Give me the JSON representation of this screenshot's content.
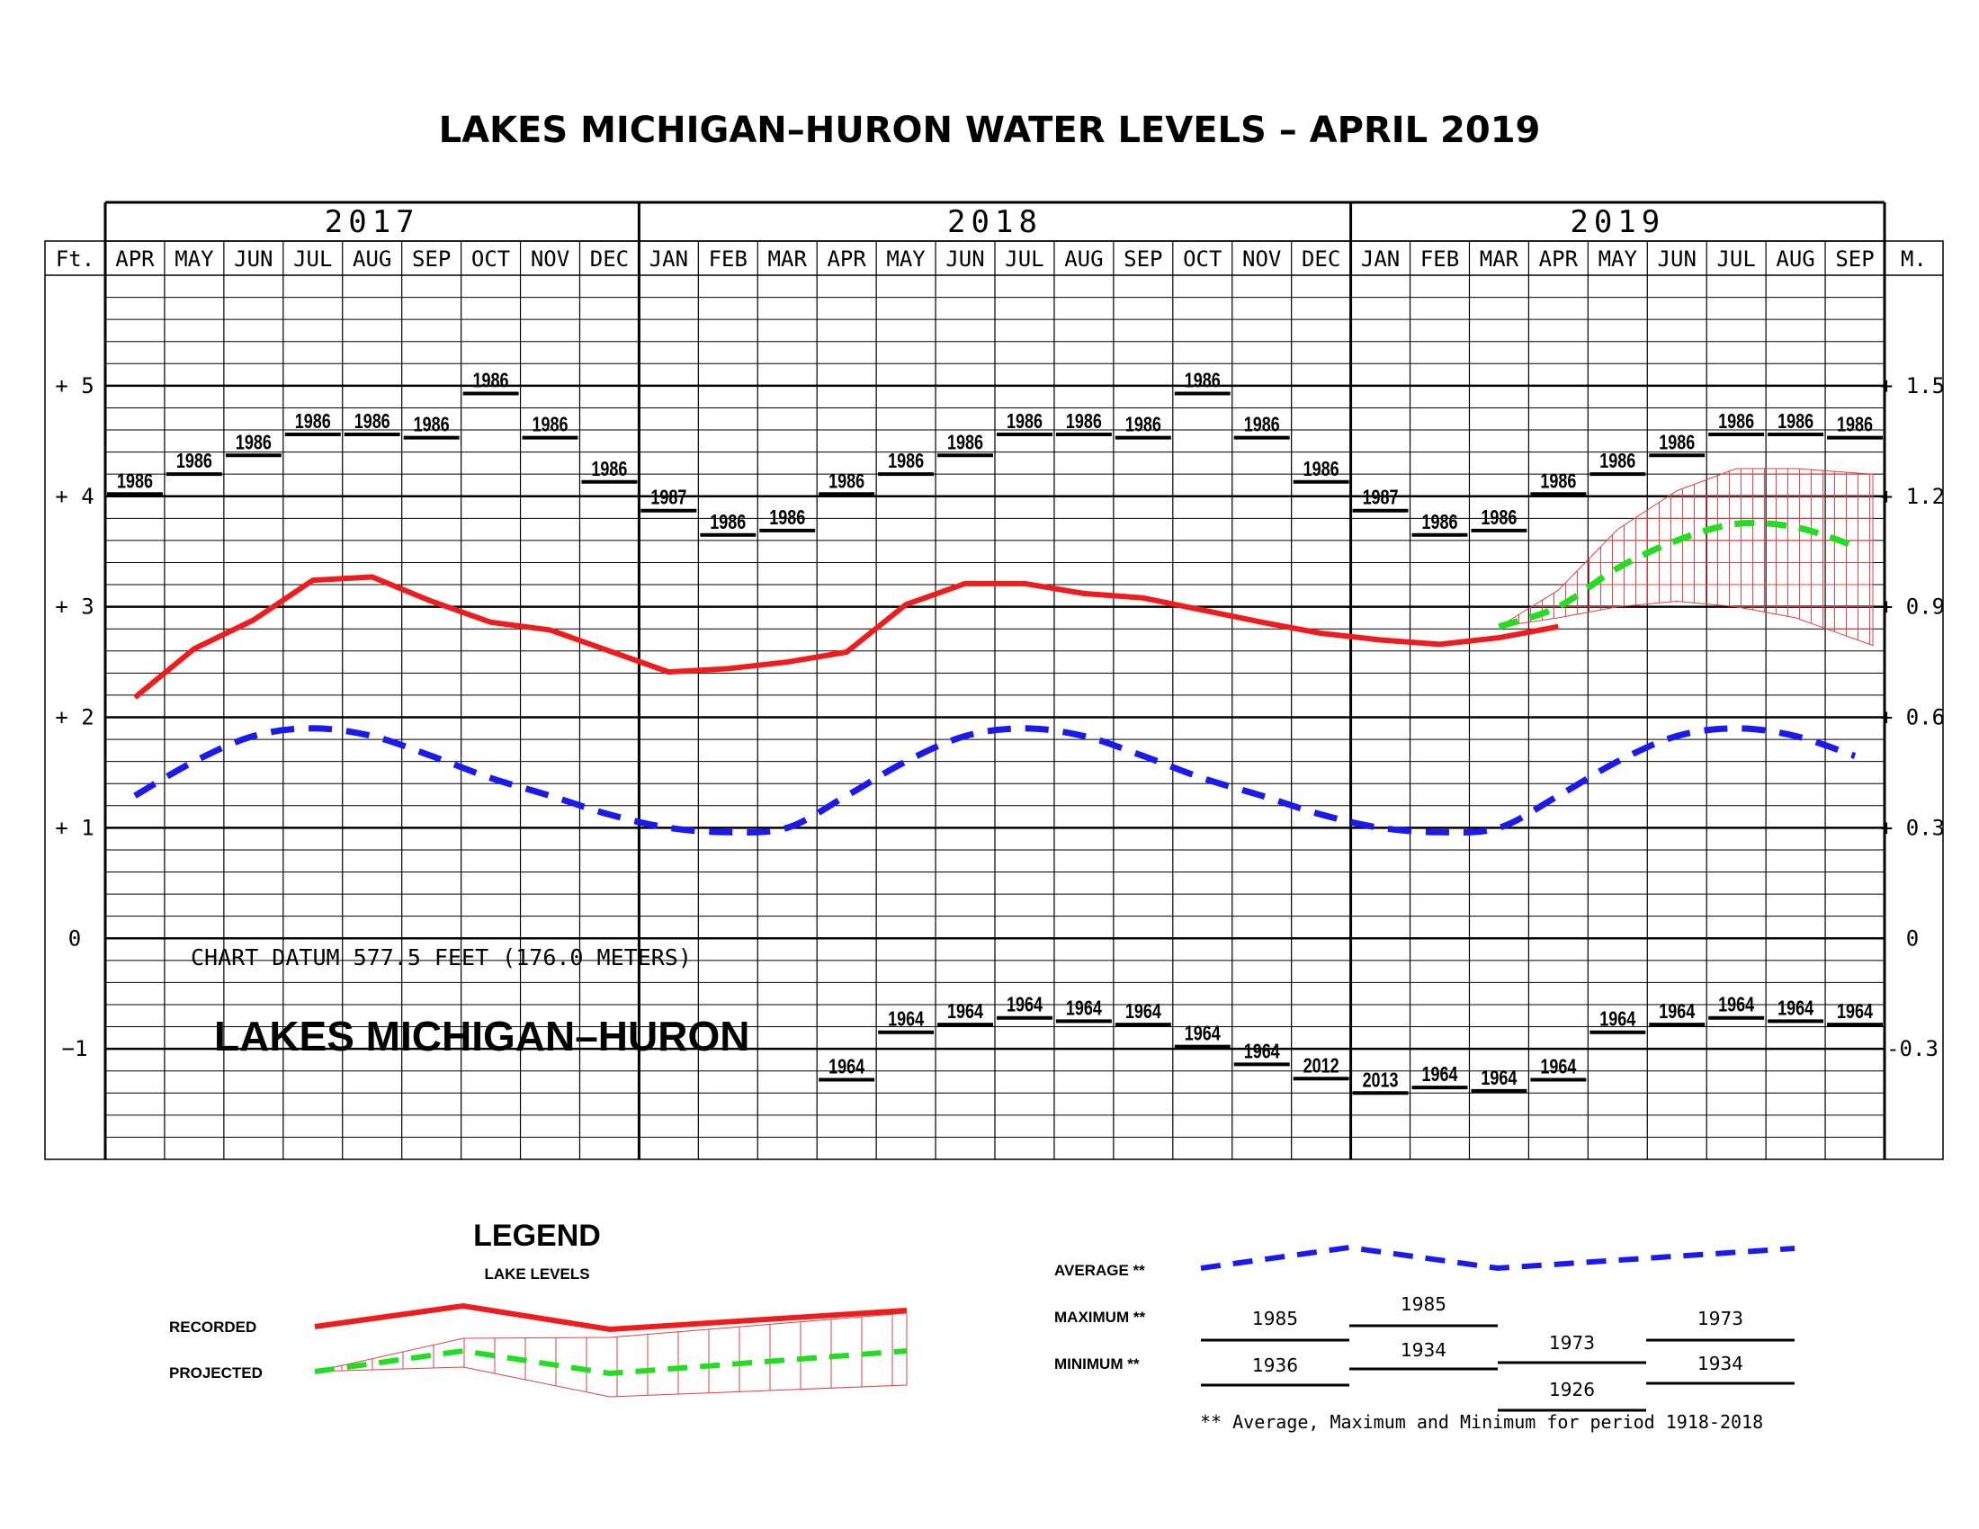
{
  "title": "LAKES  MICHIGAN–HURON  WATER  LEVELS  –  APRIL  2019",
  "datum_text": "CHART DATUM   577.5 FEET (176.0 METERS)",
  "lake_label": "LAKES MICHIGAN–HURON",
  "years": [
    {
      "label": "2017",
      "start": 0,
      "end": 9
    },
    {
      "label": "2018",
      "start": 9,
      "end": 21
    },
    {
      "label": "2019",
      "start": 21,
      "end": 30
    }
  ],
  "months": [
    "APR",
    "MAY",
    "JUN",
    "JUL",
    "AUG",
    "SEP",
    "OCT",
    "NOV",
    "DEC",
    "JAN",
    "FEB",
    "MAR",
    "APR",
    "MAY",
    "JUN",
    "JUL",
    "AUG",
    "SEP",
    "OCT",
    "NOV",
    "DEC",
    "JAN",
    "FEB",
    "MAR",
    "APR",
    "MAY",
    "JUN",
    "JUL",
    "AUG",
    "SEP"
  ],
  "left_unit": "Ft.",
  "right_unit": "M.",
  "left_ticks": [
    {
      "value": 5,
      "label": "+ 5"
    },
    {
      "value": 4,
      "label": "+ 4"
    },
    {
      "value": 3,
      "label": "+ 3"
    },
    {
      "value": 2,
      "label": "+ 2"
    },
    {
      "value": 1,
      "label": "+ 1"
    },
    {
      "value": 0,
      "label": "0"
    },
    {
      "value": -1,
      "label": "−1"
    }
  ],
  "right_ticks": [
    {
      "value": 5,
      "label": "+ 1.5"
    },
    {
      "value": 4,
      "label": "+ 1.2"
    },
    {
      "value": 3,
      "label": "+ 0.9"
    },
    {
      "value": 2,
      "label": "+ 0.6"
    },
    {
      "value": 1,
      "label": "+ 0.3"
    },
    {
      "value": 0,
      "label": "0"
    },
    {
      "value": -1,
      "label": "-0.3"
    }
  ],
  "colors": {
    "recorded": "#ee1c1c",
    "average": "#1a1aee",
    "projected": "#22dd22",
    "hatch": "#e04040",
    "grid": "#000000"
  },
  "chart_data": {
    "type": "line",
    "title": "LAKES  MICHIGAN–HURON  WATER  LEVELS  –  APRIL  2019",
    "categories": [
      "APR",
      "MAY",
      "JUN",
      "JUL",
      "AUG",
      "SEP",
      "OCT",
      "NOV",
      "DEC",
      "JAN",
      "FEB",
      "MAR",
      "APR",
      "MAY",
      "JUN",
      "JUL",
      "AUG",
      "SEP",
      "OCT",
      "NOV",
      "DEC",
      "JAN",
      "FEB",
      "MAR",
      "APR",
      "MAY",
      "JUN",
      "JUL",
      "AUG",
      "SEP"
    ],
    "ylim": [
      -2,
      6
    ],
    "y_units_left": "Ft.",
    "y_units_right": "M.",
    "grid": true,
    "series": [
      {
        "name": "RECORDED",
        "values": [
          2.18,
          2.62,
          2.88,
          3.24,
          3.27,
          3.05,
          2.86,
          2.79,
          2.6,
          2.41,
          2.44,
          2.5,
          2.59,
          3.02,
          3.21,
          3.21,
          3.12,
          3.08,
          2.97,
          2.86,
          2.76,
          2.7,
          2.66,
          2.72,
          2.82,
          null,
          null,
          null,
          null,
          null
        ]
      },
      {
        "name": "AVERAGE",
        "values": [
          1.29,
          1.6,
          1.83,
          1.9,
          1.83,
          1.65,
          1.45,
          1.29,
          1.12,
          1.0,
          0.96,
          1.0,
          1.29,
          1.6,
          1.83,
          1.9,
          1.83,
          1.65,
          1.45,
          1.29,
          1.12,
          1.0,
          0.96,
          1.0,
          1.29,
          1.6,
          1.83,
          1.9,
          1.83,
          1.65
        ]
      },
      {
        "name": "PROJECTED",
        "values": [
          null,
          null,
          null,
          null,
          null,
          null,
          null,
          null,
          null,
          null,
          null,
          null,
          null,
          null,
          null,
          null,
          null,
          null,
          null,
          null,
          null,
          null,
          null,
          2.82,
          3.0,
          3.35,
          3.6,
          3.75,
          3.72,
          3.55
        ]
      },
      {
        "name": "PROJECTED_HIGH",
        "values": [
          null,
          null,
          null,
          null,
          null,
          null,
          null,
          null,
          null,
          null,
          null,
          null,
          null,
          null,
          null,
          null,
          null,
          null,
          null,
          null,
          null,
          null,
          null,
          2.82,
          3.15,
          3.7,
          4.05,
          4.25,
          4.25,
          4.2
        ]
      },
      {
        "name": "PROJECTED_LOW",
        "values": [
          null,
          null,
          null,
          null,
          null,
          null,
          null,
          null,
          null,
          null,
          null,
          null,
          null,
          null,
          null,
          null,
          null,
          null,
          null,
          null,
          null,
          null,
          null,
          2.82,
          2.9,
          3.0,
          3.05,
          3.0,
          2.9,
          2.65
        ]
      }
    ],
    "record_highs": [
      {
        "value": 4.02,
        "year": "1986"
      },
      {
        "value": 4.2,
        "year": "1986"
      },
      {
        "value": 4.37,
        "year": "1986"
      },
      {
        "value": 4.56,
        "year": "1986"
      },
      {
        "value": 4.56,
        "year": "1986"
      },
      {
        "value": 4.53,
        "year": "1986"
      },
      {
        "value": 4.93,
        "year": "1986"
      },
      {
        "value": 4.53,
        "year": "1986"
      },
      {
        "value": 4.13,
        "year": "1986"
      },
      {
        "value": 3.87,
        "year": "1987"
      },
      {
        "value": 3.65,
        "year": "1986"
      },
      {
        "value": 3.69,
        "year": "1986"
      },
      {
        "value": 4.02,
        "year": "1986"
      },
      {
        "value": 4.2,
        "year": "1986"
      },
      {
        "value": 4.37,
        "year": "1986"
      },
      {
        "value": 4.56,
        "year": "1986"
      },
      {
        "value": 4.56,
        "year": "1986"
      },
      {
        "value": 4.53,
        "year": "1986"
      },
      {
        "value": 4.93,
        "year": "1986"
      },
      {
        "value": 4.53,
        "year": "1986"
      },
      {
        "value": 4.13,
        "year": "1986"
      },
      {
        "value": 3.87,
        "year": "1987"
      },
      {
        "value": 3.65,
        "year": "1986"
      },
      {
        "value": 3.69,
        "year": "1986"
      },
      {
        "value": 4.02,
        "year": "1986"
      },
      {
        "value": 4.2,
        "year": "1986"
      },
      {
        "value": 4.37,
        "year": "1986"
      },
      {
        "value": 4.56,
        "year": "1986"
      },
      {
        "value": 4.56,
        "year": "1986"
      },
      {
        "value": 4.53,
        "year": "1986"
      }
    ],
    "record_lows": [
      null,
      null,
      null,
      null,
      null,
      null,
      null,
      null,
      null,
      null,
      null,
      null,
      {
        "value": -1.28,
        "year": "1964"
      },
      {
        "value": -0.85,
        "year": "1964"
      },
      {
        "value": -0.78,
        "year": "1964"
      },
      {
        "value": -0.72,
        "year": "1964"
      },
      {
        "value": -0.75,
        "year": "1964"
      },
      {
        "value": -0.78,
        "year": "1964"
      },
      {
        "value": -0.98,
        "year": "1964"
      },
      {
        "value": -1.14,
        "year": "1964"
      },
      {
        "value": -1.27,
        "year": "2012"
      },
      {
        "value": -1.4,
        "year": "2013"
      },
      {
        "value": -1.35,
        "year": "1964"
      },
      {
        "value": -1.38,
        "year": "1964"
      },
      {
        "value": -1.28,
        "year": "1964"
      },
      {
        "value": -0.85,
        "year": "1964"
      },
      {
        "value": -0.78,
        "year": "1964"
      },
      {
        "value": -0.72,
        "year": "1964"
      },
      {
        "value": -0.75,
        "year": "1964"
      },
      {
        "value": -0.78,
        "year": "1964"
      }
    ]
  },
  "legend": {
    "title": "LEGEND",
    "subtitle": "LAKE LEVELS",
    "recorded_label": "RECORDED",
    "projected_label": "PROJECTED",
    "average_label": "AVERAGE **",
    "maximum_label": "MAXIMUM **",
    "minimum_label": "MINIMUM **",
    "max_years": [
      "1985",
      "1985",
      "1973",
      "1973"
    ],
    "min_years": [
      "1936",
      "1934",
      "1926",
      "1934"
    ],
    "note": "** Average, Maximum and Minimum for period 1918-2018"
  }
}
